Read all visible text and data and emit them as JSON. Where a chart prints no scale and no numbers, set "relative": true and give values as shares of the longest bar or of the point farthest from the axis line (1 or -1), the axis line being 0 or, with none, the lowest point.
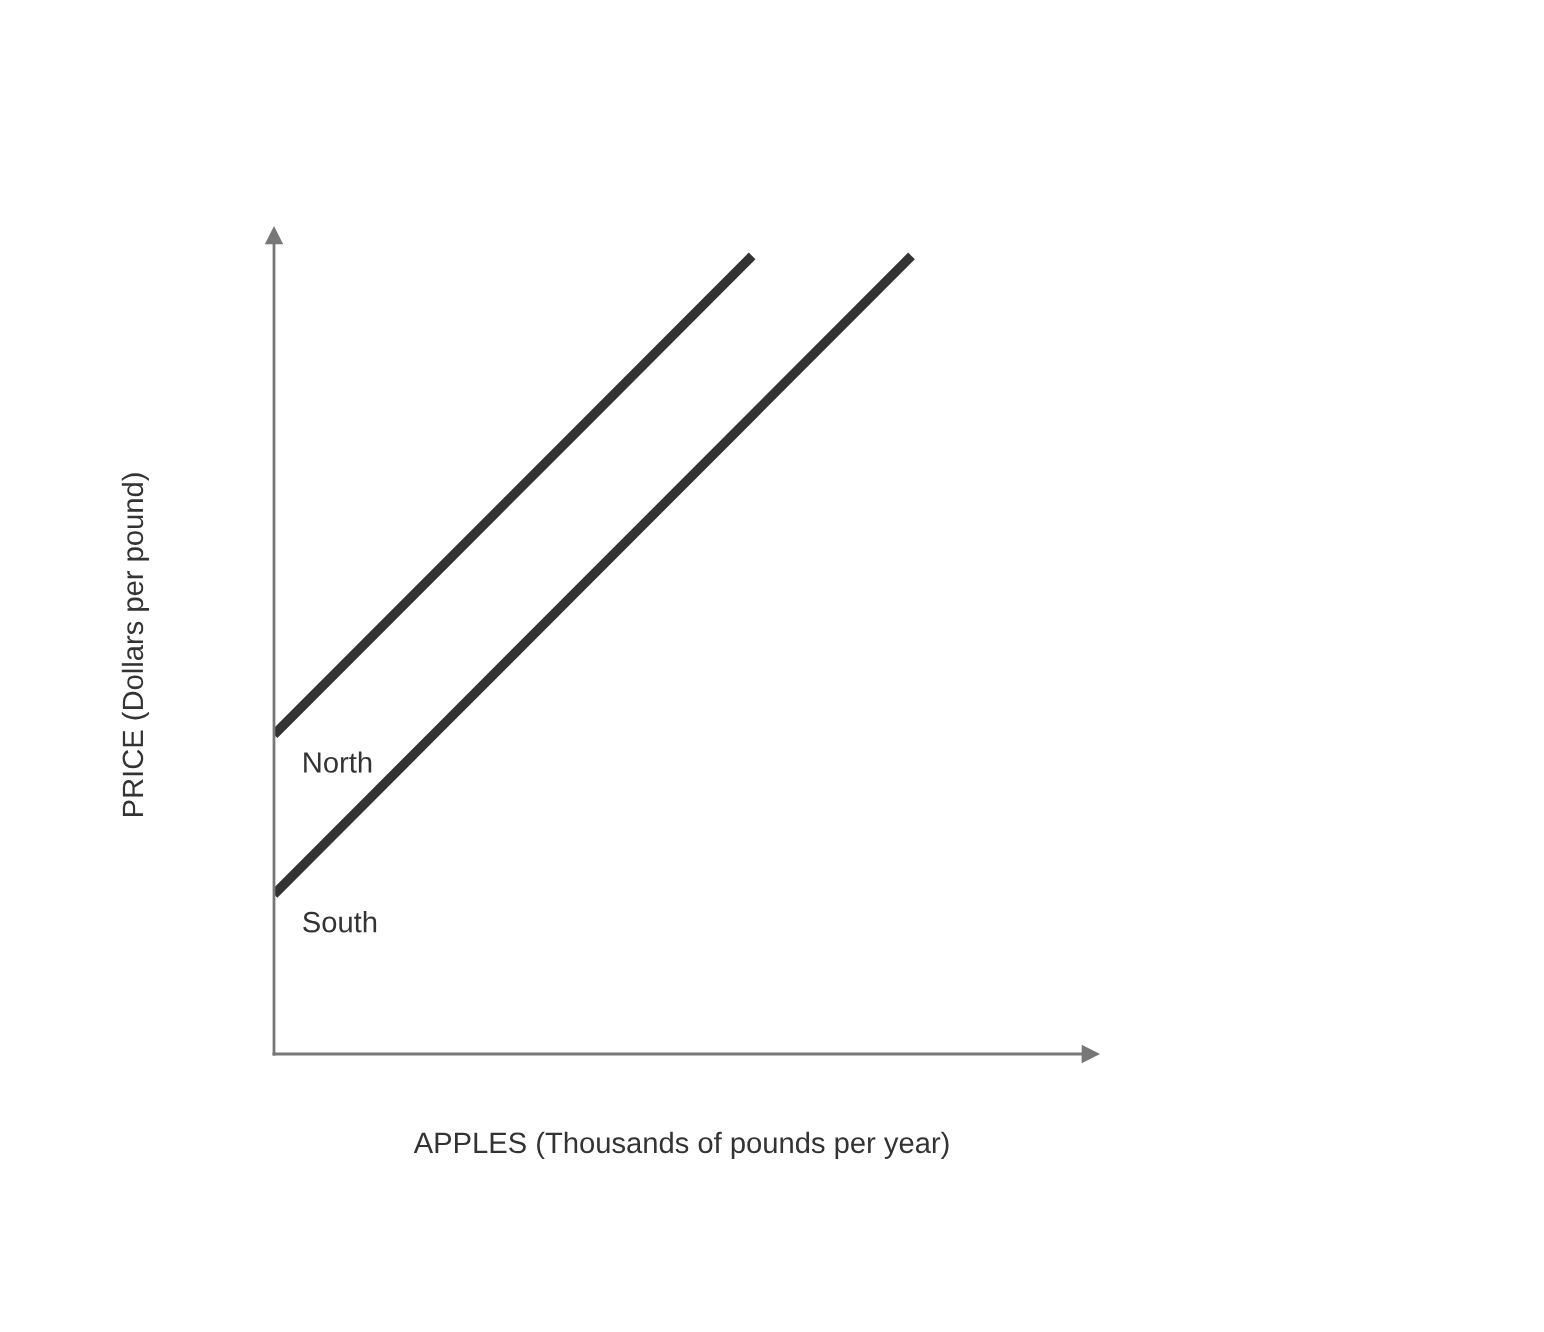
{
  "chart_data": {
    "type": "line",
    "relative": true,
    "xlabel": "APPLES (Thousands of pounds per year)",
    "ylabel": "PRICE (Dollars per pound)",
    "legend": false,
    "marker": "none",
    "line_style": "solid",
    "categories": [
      null,
      null,
      null,
      null,
      null
    ],
    "series": [
      {
        "name": "North",
        "color": "#333333",
        "values": [
          0.4,
          0.6,
          0.8,
          1.0,
          null
        ]
      },
      {
        "name": "South",
        "color": "#333333",
        "values": [
          0.2,
          0.4,
          0.6,
          0.8,
          1.0
        ]
      }
    ]
  }
}
